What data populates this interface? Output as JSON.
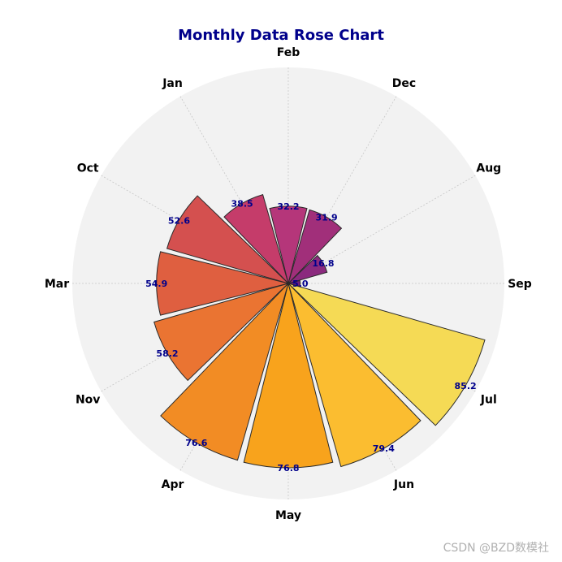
{
  "chart_data": {
    "type": "rose",
    "title": "Monthly Data Rose Chart",
    "angular_labels": [
      "Sep",
      "Aug",
      "Dec",
      "Feb",
      "Jan",
      "Oct",
      "Mar",
      "Nov",
      "Apr",
      "May",
      "Jun",
      "Jul"
    ],
    "categories": [
      "Sep",
      "Aug",
      "Dec",
      "Feb",
      "Jan",
      "Oct",
      "Mar",
      "Nov",
      "Apr",
      "May",
      "Jun",
      "Jul"
    ],
    "values": [
      5.0,
      16.8,
      31.9,
      32.2,
      38.5,
      52.6,
      54.9,
      58.2,
      76.6,
      76.8,
      79.4,
      85.2
    ],
    "value_labels": [
      "5.0",
      "16.8",
      "31.9",
      "32.2",
      "38.5",
      "52.6",
      "54.9",
      "58.2",
      "76.6",
      "76.8",
      "79.4",
      "85.2"
    ],
    "rmax": 90,
    "grid": true,
    "colors": [
      "#6e1f7e",
      "#8b2a7e",
      "#a12f7a",
      "#b5367a",
      "#c53c6a",
      "#d4504f",
      "#df5f40",
      "#ea7432",
      "#f28c24",
      "#f8a31c",
      "#fbbd30",
      "#f5da55"
    ]
  },
  "watermark": "CSDN @BZD数模社"
}
